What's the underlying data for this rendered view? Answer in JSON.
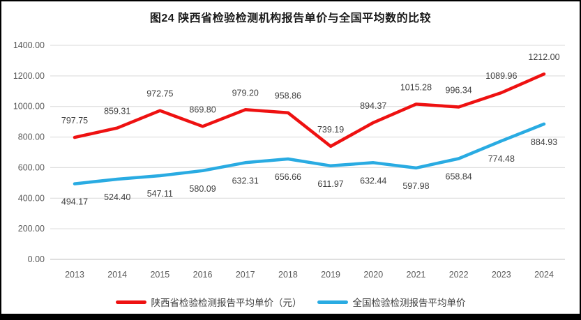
{
  "chart_data": {
    "type": "line",
    "title": "图24 陕西省检验检测机构报告单价与全国平均数的比较",
    "categories": [
      "2013",
      "2014",
      "2015",
      "2016",
      "2017",
      "2018",
      "2019",
      "2020",
      "2021",
      "2022",
      "2023",
      "2024"
    ],
    "series": [
      {
        "name": "陕西省检验检测报告平均单价（元）",
        "color": "#ee1111",
        "label_position": "above",
        "values": [
          797.75,
          859.31,
          972.75,
          869.8,
          979.2,
          958.86,
          739.19,
          894.37,
          1015.28,
          996.34,
          1089.96,
          1212.0
        ]
      },
      {
        "name": "全国检验检测报告平均单价",
        "color": "#29abe2",
        "label_position": "below",
        "values": [
          494.17,
          524.4,
          547.11,
          580.09,
          632.31,
          656.66,
          611.97,
          632.44,
          597.98,
          658.84,
          774.48,
          884.93
        ]
      }
    ],
    "ylim": [
      0,
      1400
    ],
    "ytick_step": 200,
    "yticks": [
      "0.00",
      "200.00",
      "400.00",
      "600.00",
      "800.00",
      "1000.00",
      "1200.00",
      "1400.00"
    ],
    "grid": true,
    "legend_position": "bottom",
    "data_labels_decimals": 2
  },
  "colors": {
    "grid": "#d9d9d9",
    "axis_line": "#bfbfbf",
    "axis_text": "#595959",
    "data_label_text": "#3f3f3f",
    "frame": "#000000",
    "background": "#ffffff"
  }
}
